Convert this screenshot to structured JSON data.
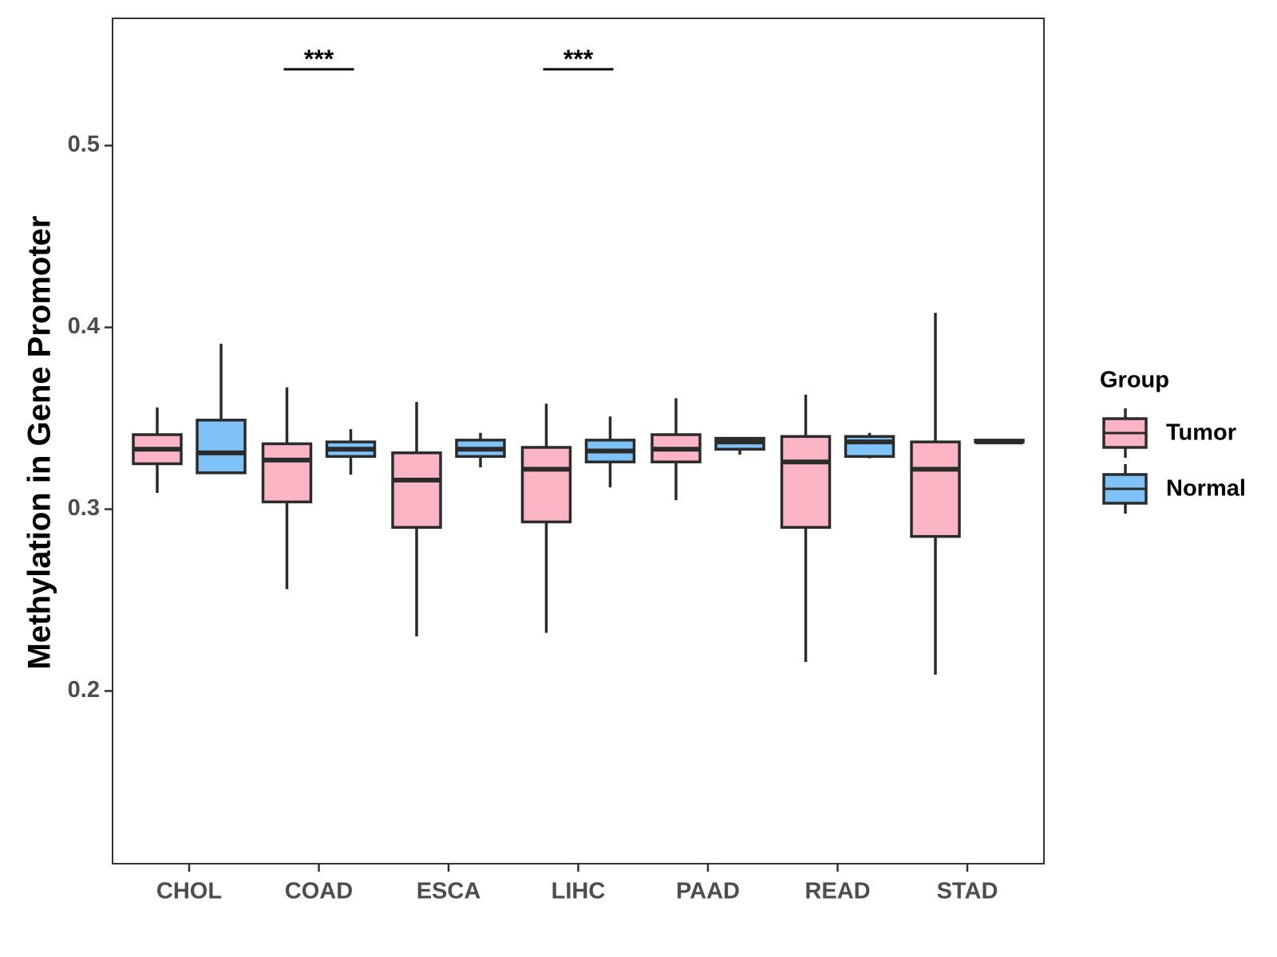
{
  "chart_data": {
    "type": "boxplot",
    "title": "",
    "xlabel": "",
    "ylabel": "Methylation in Gene Promoter",
    "ylim": [
      0.105,
      0.57
    ],
    "yticks": [
      0.2,
      0.3,
      0.4,
      0.5
    ],
    "ytick_labels": [
      "0.2",
      "0.3",
      "0.4",
      "0.5"
    ],
    "grid": false,
    "categories": [
      "CHOL",
      "COAD",
      "ESCA",
      "LIHC",
      "PAAD",
      "READ",
      "STAD"
    ],
    "legend": {
      "title": "Group",
      "position": "right",
      "items": [
        {
          "name": "Tumor",
          "color": "#fbb4c4"
        },
        {
          "name": "Normal",
          "color": "#7ec2f7"
        }
      ]
    },
    "series": [
      {
        "name": "Tumor",
        "color": "#fbb4c4",
        "boxes": [
          {
            "min": 0.309,
            "q1": 0.325,
            "median": 0.333,
            "q3": 0.341,
            "max": 0.356
          },
          {
            "min": 0.256,
            "q1": 0.304,
            "median": 0.327,
            "q3": 0.336,
            "max": 0.367
          },
          {
            "min": 0.23,
            "q1": 0.29,
            "median": 0.316,
            "q3": 0.331,
            "max": 0.359
          },
          {
            "min": 0.232,
            "q1": 0.293,
            "median": 0.322,
            "q3": 0.334,
            "max": 0.358
          },
          {
            "min": 0.305,
            "q1": 0.326,
            "median": 0.333,
            "q3": 0.341,
            "max": 0.361
          },
          {
            "min": 0.216,
            "q1": 0.29,
            "median": 0.326,
            "q3": 0.34,
            "max": 0.363
          },
          {
            "min": 0.209,
            "q1": 0.285,
            "median": 0.322,
            "q3": 0.337,
            "max": 0.408
          }
        ]
      },
      {
        "name": "Normal",
        "color": "#7ec2f7",
        "boxes": [
          {
            "min": 0.32,
            "q1": 0.32,
            "median": 0.331,
            "q3": 0.349,
            "max": 0.391
          },
          {
            "min": 0.319,
            "q1": 0.329,
            "median": 0.333,
            "q3": 0.337,
            "max": 0.344
          },
          {
            "min": 0.323,
            "q1": 0.329,
            "median": 0.333,
            "q3": 0.338,
            "max": 0.342
          },
          {
            "min": 0.312,
            "q1": 0.326,
            "median": 0.332,
            "q3": 0.338,
            "max": 0.351
          },
          {
            "min": 0.33,
            "q1": 0.333,
            "median": 0.337,
            "q3": 0.339,
            "max": 0.339
          },
          {
            "min": 0.328,
            "q1": 0.329,
            "median": 0.337,
            "q3": 0.34,
            "max": 0.342
          },
          {
            "min": 0.337,
            "q1": 0.337,
            "median": 0.337,
            "q3": 0.338,
            "max": 0.338
          }
        ]
      }
    ],
    "annotations": [
      {
        "category": "COAD",
        "label": "***",
        "y": 0.542
      },
      {
        "category": "LIHC",
        "label": "***",
        "y": 0.542
      }
    ]
  }
}
